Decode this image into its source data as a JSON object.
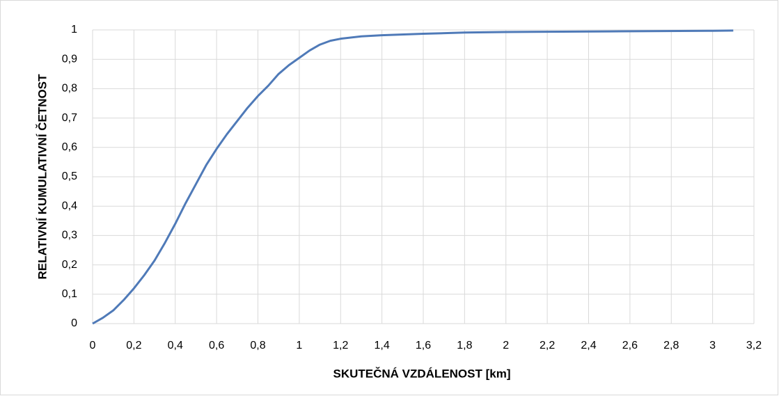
{
  "chart_data": {
    "type": "line",
    "xlabel": "SKUTEČNÁ VZDÁLENOST [km]",
    "ylabel": "RELATIVNÍ KUMULATIVNÍ ČETNOST",
    "x": [
      0,
      0.05,
      0.1,
      0.15,
      0.2,
      0.25,
      0.3,
      0.35,
      0.4,
      0.45,
      0.5,
      0.55,
      0.6,
      0.65,
      0.7,
      0.75,
      0.8,
      0.85,
      0.9,
      0.95,
      1.0,
      1.05,
      1.1,
      1.15,
      1.2,
      1.3,
      1.4,
      1.6,
      1.8,
      2.0,
      2.5,
      3.0,
      3.1
    ],
    "series": [
      {
        "color": "#4f7ab8",
        "values": [
          0,
          0.02,
          0.045,
          0.08,
          0.12,
          0.165,
          0.215,
          0.275,
          0.34,
          0.41,
          0.475,
          0.54,
          0.595,
          0.645,
          0.69,
          0.735,
          0.775,
          0.81,
          0.85,
          0.88,
          0.905,
          0.93,
          0.95,
          0.963,
          0.97,
          0.978,
          0.982,
          0.987,
          0.991,
          0.993,
          0.995,
          0.997,
          0.998
        ]
      }
    ],
    "xlim": [
      0,
      3.2
    ],
    "xticks": [
      0,
      {
        "value": 0.2,
        "label": "0,2"
      },
      {
        "value": 0.4,
        "label": "0,4"
      },
      {
        "value": 0.6,
        "label": "0,6"
      },
      {
        "value": 0.8,
        "label": "0,8"
      },
      1,
      {
        "value": 1.2,
        "label": "1,2"
      },
      {
        "value": 1.4,
        "label": "1,4"
      },
      {
        "value": 1.6,
        "label": "1,6"
      },
      {
        "value": 1.8,
        "label": "1,8"
      },
      2,
      {
        "value": 2.2,
        "label": "2,2"
      },
      {
        "value": 2.4,
        "label": "2,4"
      },
      {
        "value": 2.6,
        "label": "2,6"
      },
      {
        "value": 2.8,
        "label": "2,8"
      },
      3,
      {
        "value": 3.2,
        "label": "3,2"
      }
    ],
    "ylim": [
      0,
      1
    ],
    "yticks": [
      0,
      {
        "value": 0.1,
        "label": "0,1"
      },
      {
        "value": 0.2,
        "label": "0,2"
      },
      {
        "value": 0.3,
        "label": "0,3"
      },
      {
        "value": 0.4,
        "label": "0,4"
      },
      {
        "value": 0.5,
        "label": "0,5"
      },
      {
        "value": 0.6,
        "label": "0,6"
      },
      {
        "value": 0.7,
        "label": "0,7"
      },
      {
        "value": 0.8,
        "label": "0,8"
      },
      {
        "value": 0.9,
        "label": "0,9"
      },
      1
    ],
    "grid": true
  }
}
